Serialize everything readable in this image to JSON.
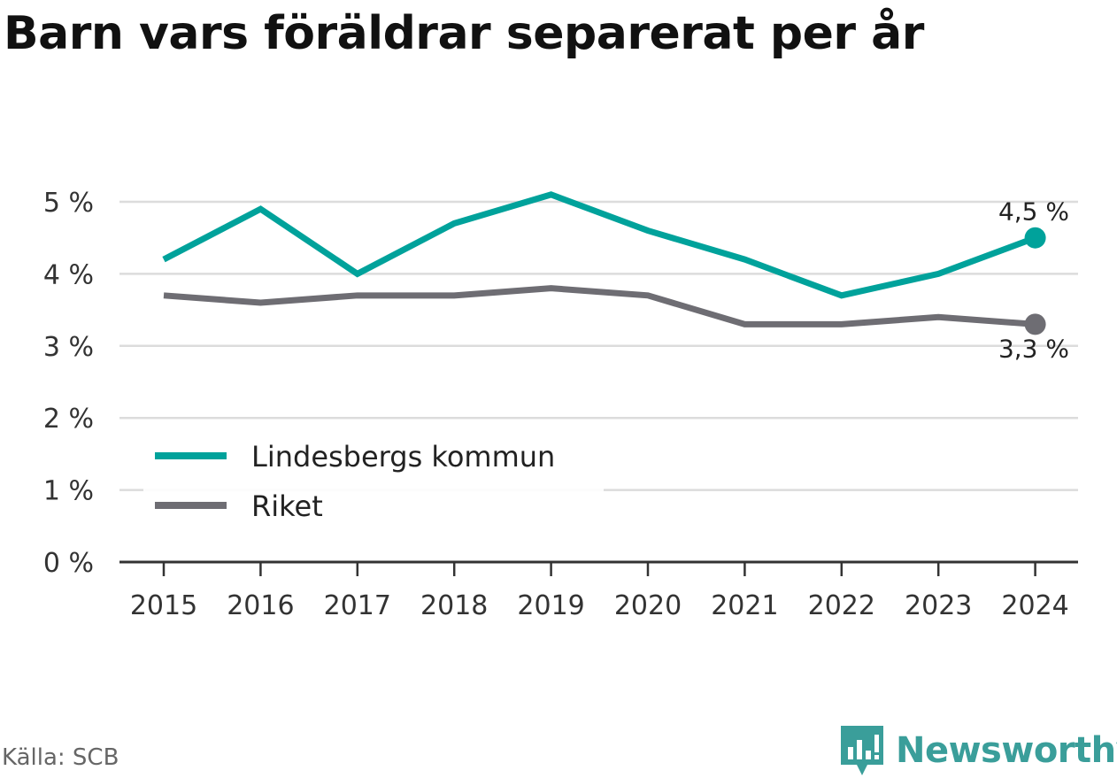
{
  "title": "Barn vars föräldrar separerat per år",
  "source": "Källa: SCB",
  "brand": {
    "name": "Newsworthy",
    "icon": "newsworthy-logo-icon",
    "color": "#3a9e9a"
  },
  "chart_data": {
    "type": "line",
    "x": [
      "2015",
      "2016",
      "2017",
      "2018",
      "2019",
      "2020",
      "2021",
      "2022",
      "2023",
      "2024"
    ],
    "series": [
      {
        "name": "Lindesbergs kommun",
        "color": "#00a29b",
        "values": [
          4.2,
          4.9,
          4.0,
          4.7,
          5.1,
          4.6,
          4.2,
          3.7,
          4.0,
          4.5
        ],
        "end_label": "4,5 %"
      },
      {
        "name": "Riket",
        "color": "#6e6d73",
        "values": [
          3.7,
          3.6,
          3.7,
          3.7,
          3.8,
          3.7,
          3.3,
          3.3,
          3.4,
          3.3
        ],
        "end_label": "3,3 %"
      }
    ],
    "yticks": [
      0,
      1,
      2,
      3,
      4,
      5
    ],
    "ytick_labels": [
      "0 %",
      "1 %",
      "2 %",
      "3 %",
      "4 %",
      "5 %"
    ],
    "ylim": [
      0,
      5
    ],
    "grid": true,
    "legend_position": "bottom-left"
  }
}
